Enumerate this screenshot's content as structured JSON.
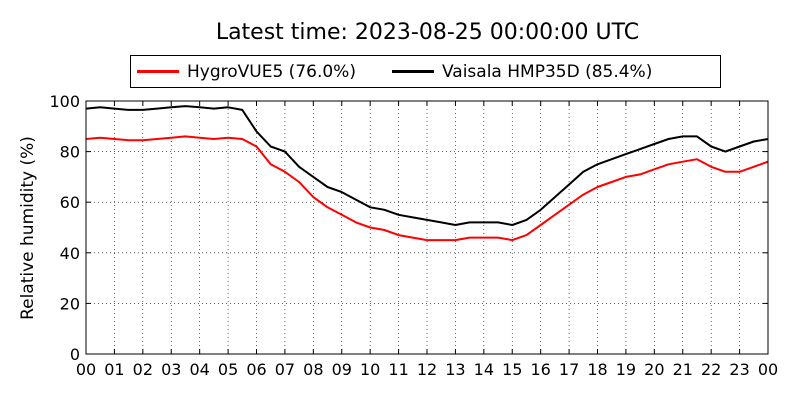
{
  "chart_data": {
    "type": "line",
    "title": "Latest time: 2023-08-25 00:00:00 UTC",
    "xlabel": "",
    "ylabel": "Relative humidity (%)",
    "xlim": [
      0,
      24
    ],
    "ylim": [
      0,
      100
    ],
    "x_ticks": [
      "00",
      "01",
      "02",
      "03",
      "04",
      "05",
      "06",
      "07",
      "08",
      "09",
      "10",
      "11",
      "12",
      "13",
      "14",
      "15",
      "16",
      "17",
      "18",
      "19",
      "20",
      "21",
      "22",
      "23",
      "00"
    ],
    "y_ticks": [
      0,
      20,
      40,
      60,
      80,
      100
    ],
    "grid": true,
    "legend_position": "top",
    "series": [
      {
        "name": "HygroVUE5 (76.0%)",
        "color": "#ff0000",
        "x": [
          0,
          0.5,
          1,
          1.5,
          2,
          2.5,
          3,
          3.5,
          4,
          4.5,
          5,
          5.5,
          6,
          6.5,
          7,
          7.5,
          8,
          8.5,
          9,
          9.5,
          10,
          10.5,
          11,
          11.5,
          12,
          12.5,
          13,
          13.5,
          14,
          14.5,
          15,
          15.5,
          16,
          16.5,
          17,
          17.5,
          18,
          18.5,
          19,
          19.5,
          20,
          20.5,
          21,
          21.5,
          22,
          22.5,
          23,
          23.5,
          24
        ],
        "y": [
          85,
          85.5,
          85,
          84.5,
          84.5,
          85,
          85.5,
          86,
          85.5,
          85,
          85.5,
          85,
          82,
          75,
          72,
          68,
          62,
          58,
          55,
          52,
          50,
          49,
          47,
          46,
          45,
          45,
          45,
          46,
          46,
          46,
          45,
          47,
          51,
          55,
          59,
          63,
          66,
          68,
          70,
          71,
          73,
          75,
          76,
          77,
          74,
          72,
          72,
          74,
          76
        ]
      },
      {
        "name": "Vaisala HMP35D (85.4%)",
        "color": "#000000",
        "x": [
          0,
          0.5,
          1,
          1.5,
          2,
          2.5,
          3,
          3.5,
          4,
          4.5,
          5,
          5.5,
          6,
          6.5,
          7,
          7.5,
          8,
          8.5,
          9,
          9.5,
          10,
          10.5,
          11,
          11.5,
          12,
          12.5,
          13,
          13.5,
          14,
          14.5,
          15,
          15.5,
          16,
          16.5,
          17,
          17.5,
          18,
          18.5,
          19,
          19.5,
          20,
          20.5,
          21,
          21.5,
          22,
          22.5,
          23,
          23.5,
          24
        ],
        "y": [
          97,
          97.5,
          97,
          96.5,
          96.5,
          97,
          97.5,
          98,
          97.5,
          97,
          97.5,
          96.5,
          88,
          82,
          80,
          74,
          70,
          66,
          64,
          61,
          58,
          57,
          55,
          54,
          53,
          52,
          51,
          52,
          52,
          52,
          51,
          53,
          57,
          62,
          67,
          72,
          75,
          77,
          79,
          81,
          83,
          85,
          86,
          86,
          82,
          80,
          82,
          84,
          85
        ]
      }
    ]
  }
}
